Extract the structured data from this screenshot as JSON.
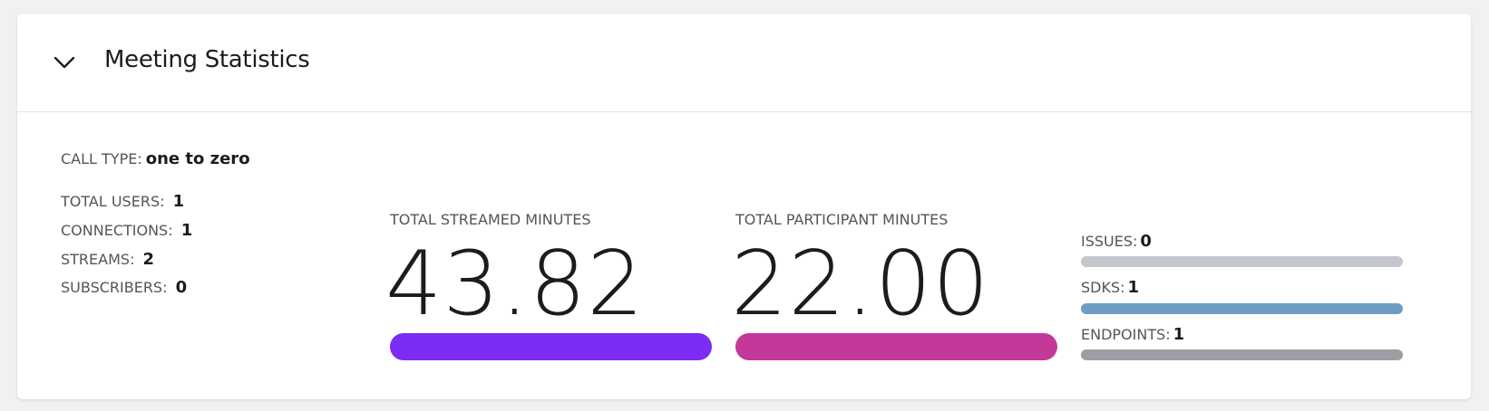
{
  "header": {
    "title": "Meeting Statistics"
  },
  "call_type": {
    "label": "CALL TYPE:",
    "value": "one to zero"
  },
  "counts": [
    {
      "label": "TOTAL USERS:",
      "value": 1
    },
    {
      "label": "CONNECTIONS:",
      "value": 1
    },
    {
      "label": "STREAMS:",
      "value": 2
    },
    {
      "label": "SUBSCRIBERS:",
      "value": 0
    }
  ],
  "metrics": [
    {
      "label": "TOTAL STREAMED MINUTES",
      "value": "43.82"
    },
    {
      "label": "TOTAL PARTICIPANT MINUTES",
      "value": "22.00"
    }
  ],
  "summary": [
    {
      "label": "ISSUES:",
      "value": 0
    },
    {
      "label": "SDKS:",
      "value": 1
    },
    {
      "label": "ENDPOINTS:",
      "value": 1
    }
  ]
}
